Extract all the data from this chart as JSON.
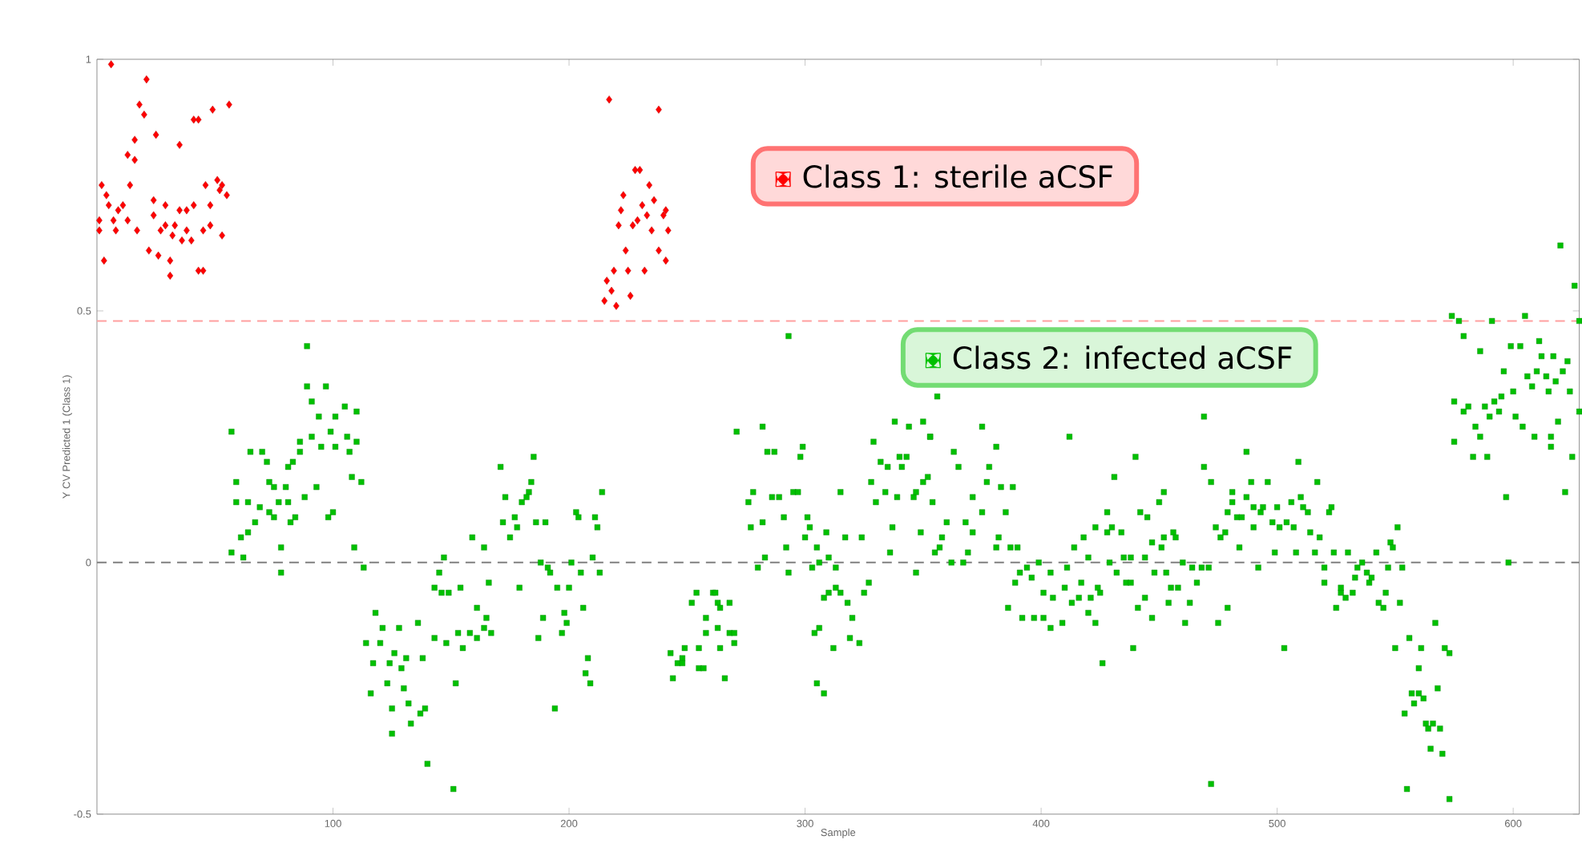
{
  "chart_data": {
    "type": "scatter",
    "xlabel": "Sample",
    "ylabel": "Y CV Predicted 1 (Class 1)",
    "xlim": [
      0,
      628
    ],
    "ylim": [
      -0.5,
      1
    ],
    "xticks": [
      100,
      200,
      300,
      400,
      500,
      600
    ],
    "yticks": [
      -0.5,
      0,
      0.5,
      1
    ],
    "grid": false,
    "legend": "top right",
    "ref_lines": [
      {
        "axis": "y",
        "value": 0.48,
        "color": "#ffa0a0",
        "line_style": "dashed"
      },
      {
        "axis": "y",
        "value": 0,
        "color": "#808080",
        "line_style": "dashed"
      }
    ],
    "series": [
      {
        "name": "Class 1: sterile aCSF",
        "color": "#ff0000",
        "marker": "diamond",
        "x": [
          6,
          21,
          18,
          20,
          25,
          16,
          13,
          16,
          35,
          41,
          43,
          49,
          56,
          2,
          14,
          4,
          5,
          11,
          9,
          1,
          1,
          7,
          13,
          8,
          17,
          3,
          24,
          29,
          24,
          29,
          27,
          33,
          35,
          38,
          41,
          38,
          32,
          36,
          40,
          22,
          26,
          31,
          31,
          43,
          45,
          45,
          48,
          53,
          48,
          46,
          51,
          52,
          55,
          53,
          217,
          238,
          228,
          230,
          223,
          234,
          236,
          231,
          222,
          240,
          241,
          221,
          227,
          229,
          233,
          235,
          242,
          224,
          238,
          219,
          225,
          232,
          241,
          216,
          218,
          215,
          220,
          226
        ],
        "values": [
          0.99,
          0.96,
          0.91,
          0.89,
          0.85,
          0.84,
          0.81,
          0.8,
          0.83,
          0.88,
          0.88,
          0.9,
          0.91,
          0.75,
          0.75,
          0.73,
          0.71,
          0.71,
          0.7,
          0.68,
          0.66,
          0.68,
          0.68,
          0.66,
          0.66,
          0.6,
          0.72,
          0.71,
          0.69,
          0.67,
          0.66,
          0.67,
          0.7,
          0.7,
          0.71,
          0.66,
          0.65,
          0.64,
          0.64,
          0.62,
          0.61,
          0.6,
          0.57,
          0.58,
          0.58,
          0.66,
          0.67,
          0.65,
          0.71,
          0.75,
          0.76,
          0.74,
          0.73,
          0.75,
          0.92,
          0.9,
          0.78,
          0.78,
          0.73,
          0.75,
          0.72,
          0.71,
          0.7,
          0.69,
          0.7,
          0.67,
          0.67,
          0.68,
          0.69,
          0.66,
          0.66,
          0.62,
          0.62,
          0.58,
          0.58,
          0.58,
          0.6,
          0.56,
          0.54,
          0.52,
          0.51,
          0.53
        ]
      },
      {
        "name": "Class 2: infected aCSF",
        "color": "#00c000",
        "marker": "square",
        "x": [
          89,
          89,
          97,
          91,
          105,
          110,
          94,
          101,
          99,
          57,
          91,
          106,
          65,
          70,
          59,
          59,
          64,
          69,
          72,
          73,
          75,
          80,
          86,
          86,
          83,
          81,
          88,
          93,
          95,
          101,
          107,
          110,
          108,
          112,
          100,
          98,
          77,
          81,
          75,
          84,
          82,
          67,
          73,
          64,
          61,
          57,
          62,
          78,
          78,
          109,
          113,
          118,
          121,
          114,
          120,
          117,
          124,
          129,
          128,
          136,
          126,
          131,
          138,
          116,
          123,
          130,
          125,
          132,
          139,
          137,
          125,
          133,
          140,
          151,
          143,
          146,
          143,
          148,
          149,
          154,
          152,
          147,
          145,
          153,
          155,
          158,
          161,
          161,
          164,
          165,
          167,
          166,
          159,
          164,
          171,
          173,
          172,
          175,
          177,
          178,
          180,
          183,
          185,
          184,
          182,
          186,
          190,
          179,
          188,
          191,
          192,
          195,
          189,
          187,
          194,
          200,
          201,
          205,
          203,
          204,
          206,
          198,
          199,
          197,
          208,
          207,
          209,
          210,
          211,
          212,
          214,
          213,
          244,
          243,
          246,
          248,
          249,
          248,
          254,
          252,
          255,
          255,
          257,
          258,
          258,
          261,
          262,
          263,
          264,
          263,
          264,
          266,
          268,
          268,
          270,
          270,
          276,
          277,
          278,
          282,
          280,
          283,
          284,
          287,
          286,
          289,
          291,
          292,
          293,
          295,
          297,
          298,
          299,
          301,
          302,
          300,
          303,
          305,
          306,
          309,
          310,
          305,
          308,
          293,
          304,
          306,
          312,
          308,
          310,
          313,
          315,
          313,
          317,
          315,
          318,
          320,
          319,
          323,
          324,
          325,
          327,
          271,
          282,
          329,
          332,
          328,
          330,
          334,
          335,
          339,
          340,
          343,
          341,
          337,
          336,
          346,
          347,
          349,
          350,
          352,
          353,
          354,
          347,
          355,
          357,
          358,
          360,
          362,
          363,
          365,
          367,
          369,
          368,
          371,
          371,
          375,
          377,
          378,
          381,
          381,
          382,
          383,
          385,
          387,
          388,
          386,
          390,
          392,
          391,
          389,
          338,
          344,
          350,
          353,
          375,
          356,
          412,
          469,
          394,
          396,
          399,
          397,
          401,
          404,
          401,
          404,
          405,
          410,
          411,
          413,
          414,
          409,
          416,
          417,
          418,
          420,
          420,
          421,
          423,
          423,
          424,
          425,
          426,
          428,
          428,
          429,
          430,
          431,
          432,
          434,
          435,
          436,
          438,
          438,
          439,
          440,
          441,
          442,
          444,
          444,
          445,
          447,
          447,
          448,
          450,
          451,
          452,
          452,
          453,
          454,
          455,
          456,
          457,
          458,
          460,
          461,
          463,
          464,
          466,
          468,
          469,
          471,
          472,
          472,
          474,
          475,
          476,
          478,
          479,
          479,
          481,
          481,
          483,
          484,
          485,
          487,
          487,
          489,
          490,
          490,
          492,
          493,
          494,
          496,
          498,
          499,
          500,
          501,
          503,
          504,
          506,
          507,
          508,
          509,
          510,
          511,
          513,
          514,
          516,
          517,
          518,
          520,
          520,
          522,
          523,
          524,
          525,
          527,
          527,
          529,
          530,
          532,
          533,
          534,
          536,
          538,
          539,
          540,
          542,
          543,
          545,
          546,
          547,
          548,
          549,
          551,
          552,
          553,
          550,
          556,
          561,
          560,
          557,
          560,
          562,
          558,
          554,
          563,
          564,
          566,
          569,
          565,
          570,
          555,
          573,
          567,
          568,
          571,
          573,
          620,
          626,
          574,
          605,
          628,
          577,
          591,
          579,
          611,
          599,
          603,
          586,
          612,
          617,
          623,
          621,
          596,
          606,
          610,
          614,
          608,
          615,
          618,
          624,
          600,
          595,
          592,
          575,
          581,
          588,
          594,
          590,
          579,
          601,
          604,
          609,
          616,
          619,
          628,
          584,
          575,
          586,
          583,
          589,
          616,
          625,
          622,
          597,
          598
        ],
        "values": [
          0.43,
          0.35,
          0.35,
          0.32,
          0.31,
          0.3,
          0.29,
          0.29,
          0.26,
          0.26,
          0.25,
          0.25,
          0.22,
          0.22,
          0.16,
          0.12,
          0.12,
          0.11,
          0.2,
          0.16,
          0.15,
          0.15,
          0.24,
          0.22,
          0.2,
          0.19,
          0.13,
          0.15,
          0.23,
          0.23,
          0.22,
          0.24,
          0.17,
          0.16,
          0.1,
          0.09,
          0.12,
          0.12,
          0.09,
          0.09,
          0.08,
          0.08,
          0.1,
          0.06,
          0.05,
          0.02,
          0.01,
          0.03,
          -0.02,
          0.03,
          -0.01,
          -0.1,
          -0.13,
          -0.16,
          -0.16,
          -0.2,
          -0.2,
          -0.21,
          -0.13,
          -0.12,
          -0.18,
          -0.19,
          -0.19,
          -0.26,
          -0.24,
          -0.25,
          -0.29,
          -0.28,
          -0.29,
          -0.3,
          -0.34,
          -0.32,
          -0.4,
          -0.45,
          -0.05,
          -0.06,
          -0.15,
          -0.16,
          -0.06,
          -0.05,
          -0.24,
          0.01,
          -0.02,
          -0.14,
          -0.17,
          -0.14,
          -0.09,
          -0.15,
          -0.13,
          -0.11,
          -0.14,
          -0.04,
          0.05,
          0.03,
          0.19,
          0.13,
          0.08,
          0.05,
          0.09,
          0.07,
          0.12,
          0.14,
          0.21,
          0.16,
          0.13,
          0.08,
          0.08,
          -0.05,
          0.0,
          -0.01,
          -0.02,
          -0.05,
          -0.11,
          -0.15,
          -0.29,
          -0.05,
          0.0,
          -0.02,
          0.1,
          0.09,
          -0.09,
          -0.1,
          -0.12,
          -0.14,
          -0.19,
          -0.22,
          -0.24,
          0.01,
          0.09,
          0.07,
          0.14,
          -0.02,
          -0.23,
          -0.18,
          -0.2,
          -0.19,
          -0.17,
          -0.2,
          -0.06,
          -0.08,
          -0.17,
          -0.21,
          -0.21,
          -0.11,
          -0.14,
          -0.06,
          -0.06,
          -0.08,
          -0.09,
          -0.13,
          -0.17,
          -0.23,
          -0.08,
          -0.14,
          -0.14,
          -0.16,
          0.12,
          0.07,
          0.14,
          0.08,
          -0.01,
          0.01,
          0.22,
          0.22,
          0.13,
          0.13,
          0.09,
          0.03,
          -0.02,
          0.14,
          0.14,
          0.21,
          0.23,
          0.09,
          0.07,
          0.05,
          -0.01,
          0.03,
          0.0,
          0.06,
          0.01,
          -0.24,
          -0.26,
          0.45,
          -0.14,
          -0.13,
          -0.17,
          -0.07,
          -0.06,
          -0.05,
          -0.06,
          -0.01,
          0.05,
          0.14,
          -0.08,
          -0.11,
          -0.15,
          -0.16,
          0.05,
          -0.06,
          -0.04,
          0.26,
          0.27,
          0.24,
          0.2,
          0.16,
          0.12,
          0.14,
          0.19,
          0.13,
          0.21,
          0.21,
          0.19,
          0.07,
          0.02,
          0.13,
          0.14,
          0.06,
          0.16,
          0.17,
          0.25,
          0.12,
          -0.02,
          0.02,
          0.03,
          0.05,
          0.08,
          0.0,
          0.22,
          0.19,
          0.0,
          0.02,
          0.08,
          0.06,
          0.13,
          0.1,
          0.16,
          0.19,
          0.23,
          0.03,
          0.05,
          0.15,
          0.1,
          0.03,
          0.15,
          -0.09,
          0.03,
          -0.11,
          -0.02,
          -0.04,
          0.28,
          0.27,
          0.28,
          0.25,
          0.27,
          0.33,
          0.25,
          0.29,
          -0.01,
          -0.03,
          0.0,
          -0.11,
          -0.11,
          -0.13,
          -0.06,
          -0.02,
          -0.07,
          -0.05,
          -0.01,
          -0.08,
          0.03,
          -0.12,
          -0.07,
          -0.04,
          0.05,
          -0.1,
          0.01,
          -0.07,
          0.07,
          -0.12,
          -0.05,
          -0.06,
          -0.2,
          0.06,
          0.1,
          0.0,
          0.07,
          0.17,
          -0.02,
          0.06,
          0.01,
          -0.04,
          0.01,
          -0.04,
          -0.17,
          0.21,
          -0.09,
          0.1,
          -0.07,
          0.01,
          0.09,
          -0.11,
          0.04,
          -0.02,
          0.12,
          0.03,
          0.14,
          0.05,
          -0.02,
          -0.08,
          -0.05,
          0.06,
          0.05,
          -0.05,
          0.0,
          -0.12,
          -0.08,
          -0.01,
          -0.04,
          -0.01,
          0.19,
          -0.01,
          -0.44,
          0.16,
          0.07,
          -0.12,
          0.05,
          0.06,
          -0.09,
          0.1,
          0.12,
          0.14,
          0.09,
          0.03,
          0.09,
          0.22,
          0.13,
          0.16,
          0.11,
          0.07,
          -0.01,
          0.1,
          0.11,
          0.16,
          0.08,
          0.02,
          0.11,
          0.07,
          -0.17,
          0.08,
          0.12,
          0.07,
          0.02,
          0.2,
          0.13,
          0.11,
          0.1,
          0.06,
          0.02,
          0.16,
          0.05,
          -0.01,
          -0.04,
          0.1,
          0.11,
          0.02,
          -0.09,
          -0.06,
          -0.05,
          -0.07,
          0.02,
          -0.06,
          -0.03,
          -0.01,
          0.0,
          -0.02,
          -0.04,
          -0.03,
          0.02,
          -0.08,
          -0.09,
          -0.06,
          -0.01,
          0.04,
          0.03,
          0.07,
          -0.08,
          -0.01,
          -0.17,
          -0.15,
          -0.17,
          -0.21,
          -0.26,
          -0.26,
          -0.27,
          -0.28,
          -0.3,
          -0.32,
          -0.33,
          -0.32,
          -0.33,
          -0.37,
          -0.38,
          -0.45,
          -0.47,
          -0.12,
          -0.25,
          -0.17,
          -0.18,
          0.63,
          0.55,
          0.49,
          0.49,
          0.48,
          0.48,
          0.48,
          0.45,
          0.44,
          0.43,
          0.43,
          0.42,
          0.41,
          0.41,
          0.4,
          0.38,
          0.38,
          0.37,
          0.38,
          0.37,
          0.35,
          0.34,
          0.36,
          0.34,
          0.34,
          0.33,
          0.32,
          0.32,
          0.31,
          0.31,
          0.3,
          0.29,
          0.3,
          0.29,
          0.27,
          0.25,
          0.25,
          0.28,
          0.3,
          0.27,
          0.24,
          0.25,
          0.21,
          0.21,
          0.23,
          0.21,
          0.14,
          0.13,
          0.0
        ]
      }
    ]
  }
}
